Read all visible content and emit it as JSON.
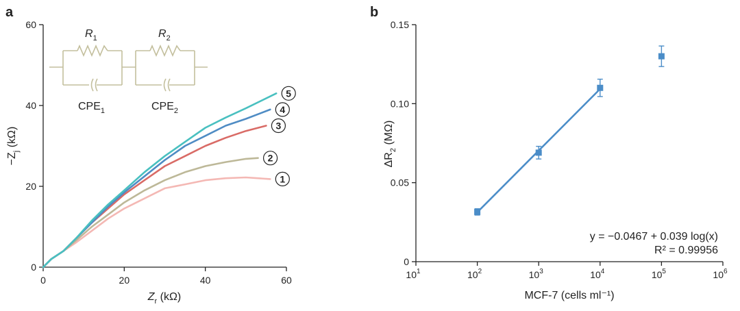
{
  "panels": {
    "a_letter": "a",
    "b_letter": "b"
  },
  "circuit": {
    "r1_label": "R",
    "r1_sub": "1",
    "r2_label": "R",
    "r2_sub": "2",
    "cpe1_label": "CPE",
    "cpe1_sub": "1",
    "cpe2_label": "CPE",
    "cpe2_sub": "2",
    "color": "#c3bf9d"
  },
  "chart_data": [
    {
      "type": "line",
      "panel": "a",
      "xlabel": "Zr (kΩ)",
      "xlabel_main": "Z",
      "xlabel_sub": "r",
      "xlabel_unit": " (kΩ)",
      "ylabel": "−Zj (kΩ)",
      "ylabel_main": "−Z",
      "ylabel_sub": "j",
      "ylabel_unit": " (kΩ)",
      "xlim": [
        0,
        60
      ],
      "ylim": [
        0,
        60
      ],
      "xticks": [
        0,
        20,
        40,
        60
      ],
      "yticks": [
        0,
        20,
        40,
        60
      ],
      "series": [
        {
          "name": "1",
          "color": "#f4b8b4",
          "x": [
            0,
            2,
            5,
            8,
            12,
            16,
            20,
            25,
            30,
            35,
            40,
            45,
            50,
            53,
            56
          ],
          "y": [
            0,
            2,
            4,
            6,
            9,
            12,
            14.5,
            17,
            19.5,
            20.5,
            21.5,
            22,
            22.2,
            22,
            21.8
          ]
        },
        {
          "name": "2",
          "color": "#bdb898",
          "x": [
            0,
            2,
            5,
            8,
            12,
            16,
            20,
            25,
            30,
            35,
            40,
            45,
            50,
            53
          ],
          "y": [
            0,
            2,
            4,
            6.5,
            10,
            13,
            16,
            19,
            21.5,
            23.5,
            25,
            26,
            26.8,
            27
          ]
        },
        {
          "name": "3",
          "color": "#d96b66",
          "x": [
            0,
            2,
            5,
            8,
            12,
            16,
            20,
            25,
            30,
            35,
            40,
            45,
            50,
            55
          ],
          "y": [
            0,
            2,
            4,
            7,
            11,
            14.5,
            18,
            21.5,
            25,
            27.5,
            30,
            32,
            33.7,
            35
          ]
        },
        {
          "name": "4",
          "color": "#4f8cc4",
          "x": [
            0,
            2,
            5,
            8,
            12,
            16,
            20,
            25,
            30,
            35,
            40,
            45,
            50,
            56
          ],
          "y": [
            0,
            2,
            4,
            7,
            11,
            15,
            18.5,
            22.5,
            26.5,
            30,
            32.5,
            35,
            36.7,
            39
          ]
        },
        {
          "name": "5",
          "color": "#49c0c0",
          "x": [
            0,
            2,
            5,
            8,
            12,
            16,
            20,
            25,
            30,
            35,
            40,
            45,
            50,
            57.5
          ],
          "y": [
            0,
            2,
            4,
            7,
            11.5,
            15.5,
            19,
            23.5,
            27.5,
            31,
            34.5,
            37,
            39.3,
            43
          ]
        }
      ]
    },
    {
      "type": "scatter",
      "panel": "b",
      "xscale": "log",
      "xlabel": "MCF-7 (cells ml⁻¹)",
      "ylabel": "ΔR2 (MΩ)",
      "ylabel_main": "ΔR",
      "ylabel_sub": "2",
      "ylabel_unit": " (MΩ)",
      "xlim_exp": [
        1,
        6
      ],
      "ylim": [
        0,
        0.15
      ],
      "xticks_base": "10",
      "xticks_exp": [
        "1",
        "2",
        "3",
        "4",
        "5",
        "6"
      ],
      "yticks": [
        "0",
        "0.05",
        "0.10",
        "0.15"
      ],
      "ytick_values": [
        0,
        0.05,
        0.1,
        0.15
      ],
      "color": "#4b8dc8",
      "points": [
        {
          "x": 100,
          "y": 0.0315,
          "err": 0.002
        },
        {
          "x": 1000,
          "y": 0.069,
          "err": 0.004
        },
        {
          "x": 10000,
          "y": 0.11,
          "err": 0.0055
        },
        {
          "x": 100000,
          "y": 0.13,
          "err": 0.0065
        }
      ],
      "fit": {
        "x_from": 100,
        "x_to": 10000,
        "intercept": -0.0467,
        "slope": 0.039
      },
      "equation": "y = −0.0467 + 0.039 log(x)",
      "r2_text": "R² = 0.99956"
    }
  ]
}
